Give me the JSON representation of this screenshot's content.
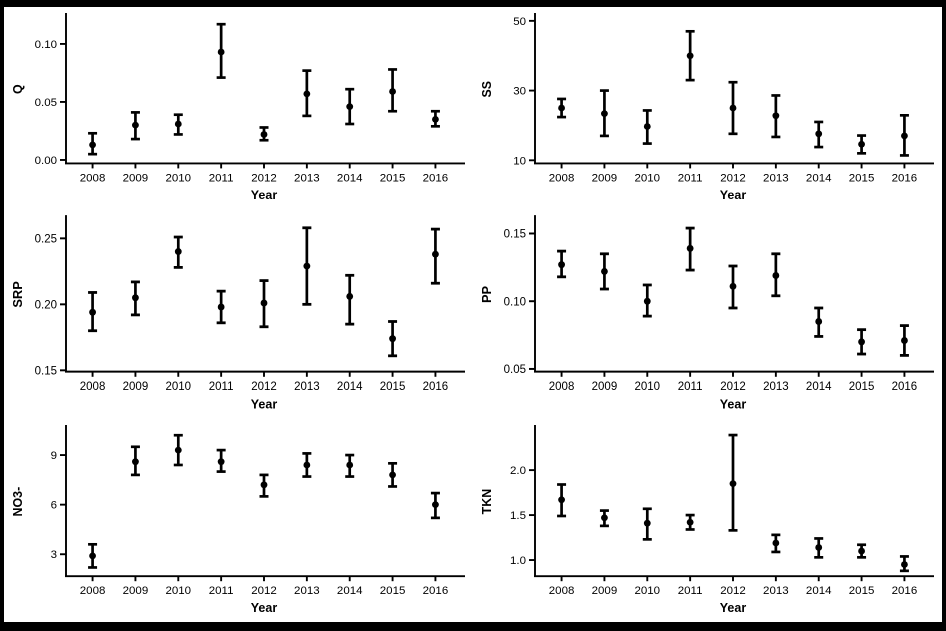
{
  "figure": {
    "background_color": "#ffffff",
    "frame_color": "#000000",
    "data_color": "#000000",
    "rows": 3,
    "cols": 2
  },
  "chart_data": [
    {
      "type": "scatter",
      "subtype": "pointrange",
      "title": "",
      "ylabel": "Q",
      "xlabel": "Year",
      "categories": [
        "2008",
        "2009",
        "2010",
        "2011",
        "2012",
        "2013",
        "2014",
        "2015",
        "2016"
      ],
      "estimates": [
        0.013,
        0.03,
        0.031,
        0.093,
        0.022,
        0.057,
        0.046,
        0.059,
        0.035
      ],
      "ci_low": [
        0.005,
        0.018,
        0.022,
        0.071,
        0.017,
        0.038,
        0.031,
        0.042,
        0.029
      ],
      "ci_high": [
        0.023,
        0.041,
        0.039,
        0.117,
        0.028,
        0.077,
        0.061,
        0.078,
        0.042
      ],
      "ylim": [
        -0.003,
        0.125
      ],
      "yticks": [
        {
          "value": 0.0,
          "label": "0.00"
        },
        {
          "value": 0.05,
          "label": "0.05"
        },
        {
          "value": 0.1,
          "label": "0.10"
        }
      ],
      "grid": false,
      "legend": false
    },
    {
      "type": "scatter",
      "subtype": "pointrange",
      "title": "",
      "ylabel": "SS",
      "xlabel": "Year",
      "categories": [
        "2008",
        "2009",
        "2010",
        "2011",
        "2012",
        "2013",
        "2014",
        "2015",
        "2016"
      ],
      "estimates": [
        25.0,
        23.4,
        19.7,
        40.0,
        25.0,
        22.8,
        17.6,
        14.6,
        17.0
      ],
      "ci_low": [
        22.4,
        17.0,
        14.8,
        33.0,
        17.6,
        16.7,
        13.8,
        12.0,
        11.4
      ],
      "ci_high": [
        27.6,
        30.0,
        24.3,
        47.0,
        32.4,
        28.6,
        21.0,
        17.1,
        22.9
      ],
      "ylim": [
        9.1,
        51.7
      ],
      "yticks": [
        {
          "value": 10,
          "label": "10"
        },
        {
          "value": 30,
          "label": "30"
        },
        {
          "value": 50,
          "label": "50"
        }
      ],
      "grid": false,
      "legend": false
    },
    {
      "type": "scatter",
      "subtype": "pointrange",
      "title": "",
      "ylabel": "SRP",
      "xlabel": "Year",
      "categories": [
        "2008",
        "2009",
        "2010",
        "2011",
        "2012",
        "2013",
        "2014",
        "2015",
        "2016"
      ],
      "estimates": [
        0.194,
        0.205,
        0.24,
        0.198,
        0.201,
        0.229,
        0.206,
        0.174,
        0.238
      ],
      "ci_low": [
        0.18,
        0.192,
        0.228,
        0.186,
        0.183,
        0.2,
        0.185,
        0.161,
        0.216
      ],
      "ci_high": [
        0.209,
        0.217,
        0.251,
        0.21,
        0.218,
        0.258,
        0.222,
        0.187,
        0.257
      ],
      "ylim": [
        0.149,
        0.266
      ],
      "yticks": [
        {
          "value": 0.15,
          "label": "0.15"
        },
        {
          "value": 0.2,
          "label": "0.20"
        },
        {
          "value": 0.25,
          "label": "0.25"
        }
      ],
      "grid": false,
      "legend": false
    },
    {
      "type": "scatter",
      "subtype": "pointrange",
      "title": "",
      "ylabel": "PP",
      "xlabel": "Year",
      "categories": [
        "2008",
        "2009",
        "2010",
        "2011",
        "2012",
        "2013",
        "2014",
        "2015",
        "2016"
      ],
      "estimates": [
        0.127,
        0.122,
        0.1,
        0.139,
        0.111,
        0.119,
        0.085,
        0.07,
        0.071
      ],
      "ci_low": [
        0.118,
        0.109,
        0.089,
        0.123,
        0.095,
        0.104,
        0.074,
        0.061,
        0.06
      ],
      "ci_high": [
        0.137,
        0.135,
        0.112,
        0.154,
        0.126,
        0.135,
        0.095,
        0.079,
        0.082
      ],
      "ylim": [
        0.048,
        0.162
      ],
      "yticks": [
        {
          "value": 0.05,
          "label": "0.05"
        },
        {
          "value": 0.1,
          "label": "0.10"
        },
        {
          "value": 0.15,
          "label": "0.15"
        }
      ],
      "grid": false,
      "legend": false
    },
    {
      "type": "scatter",
      "subtype": "pointrange",
      "title": "",
      "ylabel": "NO3-",
      "xlabel": "Year",
      "categories": [
        "2008",
        "2009",
        "2010",
        "2011",
        "2012",
        "2013",
        "2014",
        "2015",
        "2016"
      ],
      "estimates": [
        2.9,
        8.6,
        9.3,
        8.6,
        7.2,
        8.4,
        8.4,
        7.8,
        6.0
      ],
      "ci_low": [
        2.2,
        7.8,
        8.4,
        8.0,
        6.5,
        7.7,
        7.7,
        7.1,
        5.2
      ],
      "ci_high": [
        3.6,
        9.5,
        10.2,
        9.3,
        7.8,
        9.1,
        9.0,
        8.5,
        6.7
      ],
      "ylim": [
        1.67,
        10.7
      ],
      "yticks": [
        {
          "value": 3,
          "label": "3"
        },
        {
          "value": 6,
          "label": "6"
        },
        {
          "value": 9,
          "label": "9"
        }
      ],
      "grid": false,
      "legend": false
    },
    {
      "type": "scatter",
      "subtype": "pointrange",
      "title": "",
      "ylabel": "TKN",
      "xlabel": "Year",
      "categories": [
        "2008",
        "2009",
        "2010",
        "2011",
        "2012",
        "2013",
        "2014",
        "2015",
        "2016"
      ],
      "estimates": [
        1.67,
        1.47,
        1.41,
        1.42,
        1.85,
        1.19,
        1.14,
        1.1,
        0.95
      ],
      "ci_low": [
        1.49,
        1.38,
        1.23,
        1.34,
        1.33,
        1.09,
        1.03,
        1.03,
        0.88
      ],
      "ci_high": [
        1.84,
        1.55,
        1.57,
        1.5,
        2.39,
        1.28,
        1.24,
        1.17,
        1.04
      ],
      "ylim": [
        0.82,
        2.48
      ],
      "yticks": [
        {
          "value": 1.0,
          "label": "1.0"
        },
        {
          "value": 1.5,
          "label": "1.5"
        },
        {
          "value": 2.0,
          "label": "2.0"
        }
      ],
      "grid": false,
      "legend": false
    }
  ]
}
